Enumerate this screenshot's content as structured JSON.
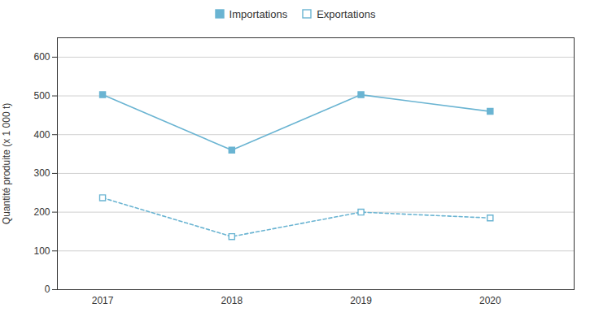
{
  "chart_data": {
    "type": "line",
    "x": [
      2017,
      2018,
      2019,
      2020
    ],
    "series": [
      {
        "name": "Importations",
        "color": "#6ab4d2",
        "values": [
          503,
          360,
          503,
          460
        ],
        "marker": "square",
        "line_style": "solid"
      },
      {
        "name": "Exportations",
        "color": "#6ab4d2",
        "values": [
          237,
          137,
          200,
          185
        ],
        "marker": "open_square",
        "line_style": "dashed"
      }
    ],
    "ylabel": "Quantité produite (x 1 000 t)",
    "xlim": [
      2016.65,
      2020.65
    ],
    "xticks": [
      2017,
      2018,
      2019,
      2020
    ],
    "ylim": [
      0,
      650
    ],
    "yticks": [
      0,
      100,
      200,
      300,
      400,
      500,
      600
    ],
    "grid": true,
    "legend": "top"
  }
}
